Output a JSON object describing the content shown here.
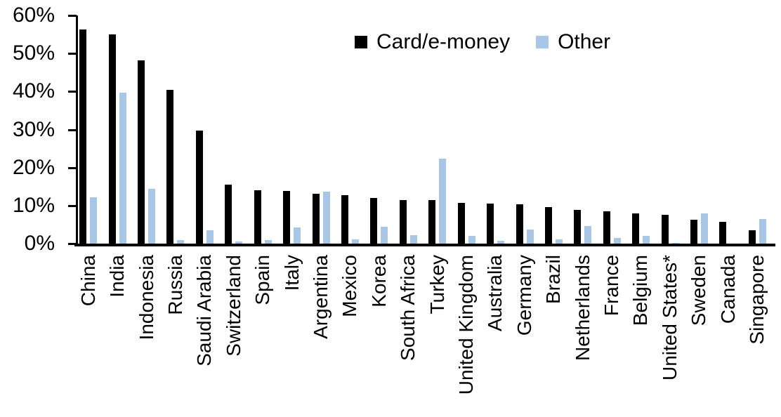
{
  "chart_data": {
    "type": "bar",
    "title": "",
    "xlabel": "",
    "ylabel": "",
    "ylim": [
      0,
      60
    ],
    "yticks": [
      "0%",
      "10%",
      "20%",
      "30%",
      "40%",
      "50%",
      "60%"
    ],
    "grid": false,
    "legend_position": "top-center",
    "categories": [
      "China",
      "India",
      "Indonesia",
      "Russia",
      "Saudi Arabia",
      "Switzerland",
      "Spain",
      "Italy",
      "Argentina",
      "Mexico",
      "Korea",
      "South Africa",
      "Turkey",
      "United Kingdom",
      "Australia",
      "Germany",
      "Brazil",
      "Netherlands",
      "France",
      "Belgium",
      "United States*",
      "Sweden",
      "Canada",
      "Singapore"
    ],
    "series": [
      {
        "name": "Card/e-money",
        "color": "#000000",
        "values": [
          56.3,
          55.1,
          48.2,
          40.5,
          29.7,
          15.6,
          14.1,
          13.9,
          13.1,
          12.7,
          12.1,
          11.5,
          11.4,
          10.8,
          10.6,
          10.3,
          9.7,
          8.9,
          8.5,
          7.9,
          7.6,
          6.3,
          5.8,
          3.6
        ]
      },
      {
        "name": "Other",
        "color": "#A8C7E6",
        "values": [
          12.2,
          39.7,
          14.4,
          0.9,
          3.6,
          0.6,
          0.9,
          4.3,
          13.6,
          1.2,
          4.4,
          2.3,
          22.4,
          2.1,
          0.8,
          3.7,
          1.1,
          4.6,
          1.4,
          2.0,
          0.2,
          7.9,
          0,
          6.5
        ]
      }
    ]
  }
}
